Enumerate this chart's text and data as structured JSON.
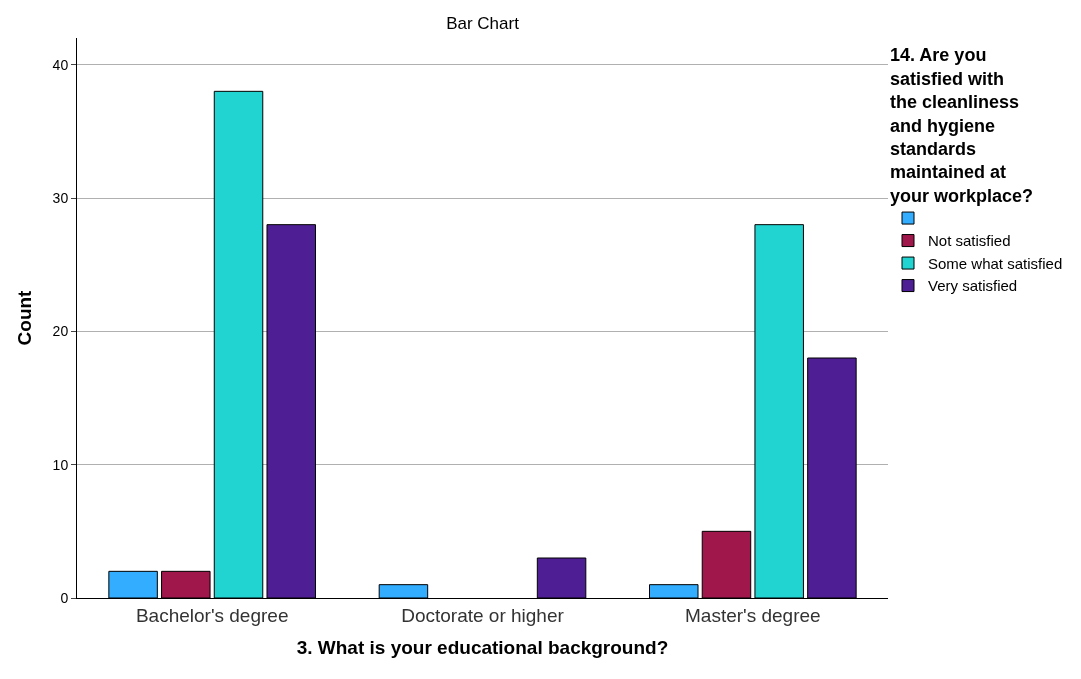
{
  "chart_data": {
    "type": "bar",
    "title": "Bar Chart",
    "xlabel": "3. What is your educational background?",
    "ylabel": "Count",
    "legend_title": "14. Are you satisfied with the cleanliness and hygiene standards maintained at your workplace?",
    "categories": [
      "Bachelor's degree",
      "Doctorate or higher",
      "Master's degree"
    ],
    "series": [
      {
        "color": "#33adff",
        "values": [
          2,
          1,
          1
        ]
      },
      {
        "name": "Not satisfied",
        "color": "#a0174b",
        "values": [
          2,
          null,
          5
        ]
      },
      {
        "name": "Some what satisfied",
        "color": "#21d4d1",
        "values": [
          38,
          null,
          28
        ]
      },
      {
        "name": "Very satisfied",
        "color": "#4e1f94",
        "values": [
          28,
          3,
          18
        ]
      }
    ],
    "ylim": [
      0,
      42
    ],
    "yticks": [
      0,
      10,
      20,
      30,
      40
    ],
    "grid": "y",
    "legend": "top right"
  }
}
